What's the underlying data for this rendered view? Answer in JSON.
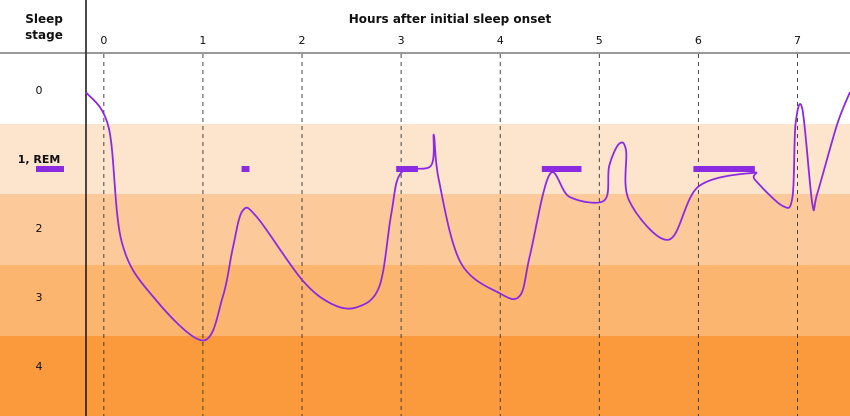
{
  "chart_data": {
    "type": "line",
    "title": "",
    "xlabel": "Hours after initial sleep onset",
    "ylabel_lines": [
      "Sleep",
      "stage"
    ],
    "x_ticks": [
      0,
      1,
      2,
      3,
      4,
      5,
      6,
      7
    ],
    "xlim": [
      -0.18,
      7.53
    ],
    "grid": "vertical dashed lines at each hour",
    "stages": [
      {
        "label": "0",
        "color": "#ffffff"
      },
      {
        "label": "1, REM",
        "color": "#fde4cc"
      },
      {
        "label": "2",
        "color": "#fcc99b"
      },
      {
        "label": "3",
        "color": "#fcb56f"
      },
      {
        "label": "4",
        "color": "#fb9a3d"
      }
    ],
    "line_color": "#8a2be2",
    "rem_color": "#8a2be2",
    "rem_legend_marker": true,
    "series": [
      {
        "x": [
          -0.18,
          0.05,
          0.18,
          0.5,
          1.0,
          1.2,
          1.3,
          1.4,
          1.55,
          2.0,
          2.3,
          2.55,
          2.78,
          2.9,
          3.0,
          3.3,
          3.33,
          3.38,
          3.6,
          4.0,
          4.2,
          4.3,
          4.5,
          4.7,
          5.05,
          5.1,
          5.2,
          5.27,
          5.3,
          5.7,
          6.0,
          6.55,
          6.57,
          6.85,
          6.95,
          6.98,
          7.05,
          7.15,
          7.2,
          7.4,
          7.53
        ],
        "y": [
          0.03,
          0.55,
          2.2,
          3.0,
          3.63,
          3.0,
          2.3,
          1.75,
          1.85,
          2.75,
          3.1,
          3.15,
          2.85,
          1.8,
          1.2,
          1.1,
          0.65,
          1.3,
          2.5,
          2.95,
          2.98,
          2.4,
          1.22,
          1.55,
          1.6,
          1.1,
          0.78,
          0.88,
          1.6,
          2.17,
          1.4,
          1.2,
          1.3,
          1.68,
          1.55,
          0.5,
          0.28,
          1.65,
          1.5,
          0.5,
          0.03
        ]
      }
    ],
    "rem_periods": [
      [
        1.39,
        1.47
      ],
      [
        2.95,
        3.17
      ],
      [
        4.42,
        4.82
      ],
      [
        5.95,
        6.57
      ]
    ]
  }
}
